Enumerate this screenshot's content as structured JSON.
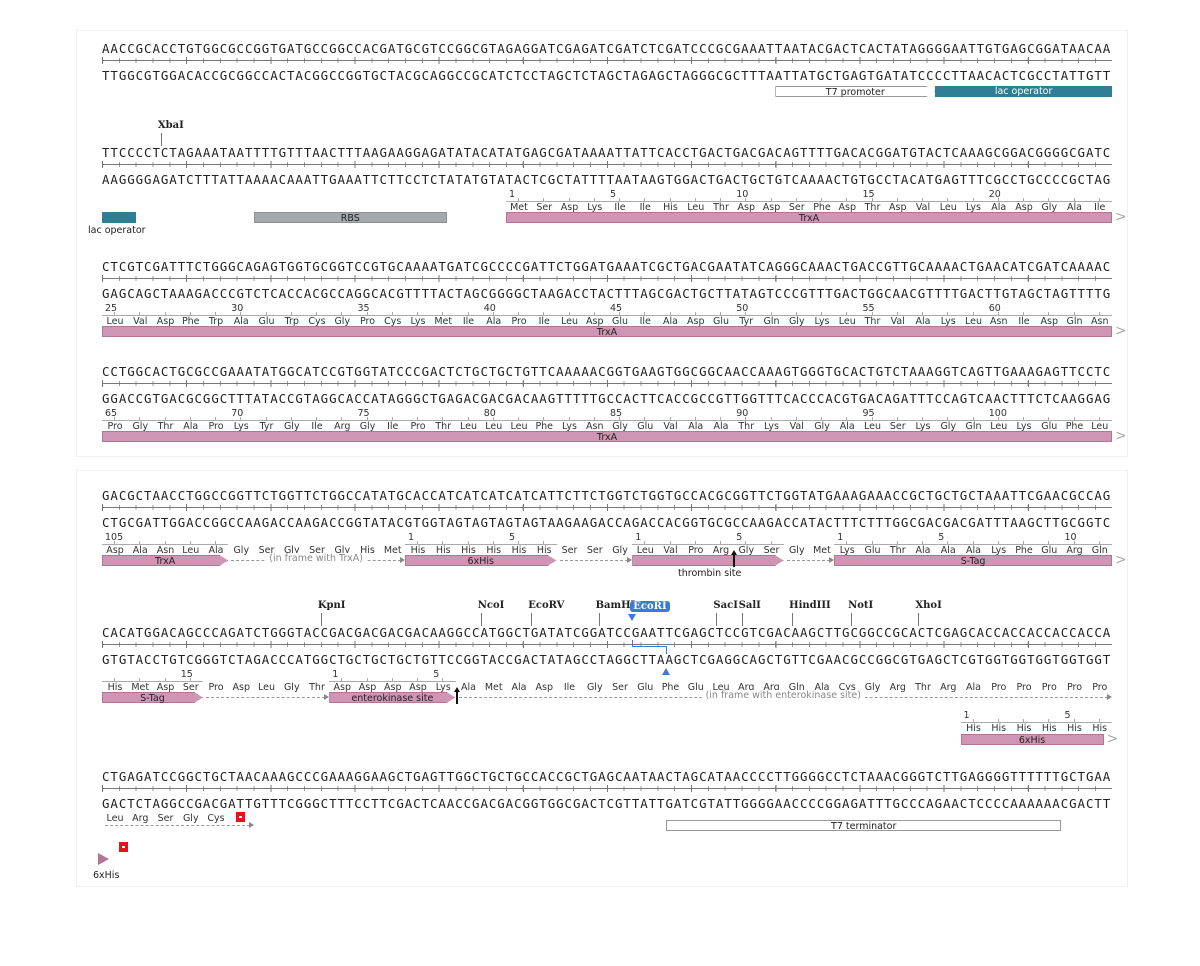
{
  "colors": {
    "cds": "#cf95b5",
    "lac_operator": "#2f7e94",
    "rbs": "#a4a9ae",
    "ecori": "#3a7bd5",
    "stop": "#e8101a"
  },
  "rows": [
    {
      "top": "AACCGCACCTGTGGCGCCGGTGATGCCGGCCACGATGCGTCCGGCGTAGAGGATCGAGATCGATCTCGATCCCGCGAAATTAATACGACTCACTATAGGGGAATTGTGAGCGGATAACAA",
      "bottom": "TTGGCGTGGACACCGCGGCCACTACGGCCGGTGCTACGCAGGCCGCATCTCCTAGCTCTAGCTAGAGCTAGGGCGCTTTAATTATGCTGAGTGATATCCCCTTAACACTCGCCTATTGTT",
      "enzymes": [],
      "aa": [],
      "features": [
        {
          "label": "T7 promoter",
          "start": 80,
          "end": 99,
          "style": "outline",
          "arrow": true
        },
        {
          "label": "lac operator",
          "start": 99,
          "end": 120,
          "style": "teal",
          "arrow": false
        }
      ],
      "dashes": []
    },
    {
      "top": "TTCCCCTCTAGAAATAATTTTGTTTAACTTTAAGAAGGAGATATACATATGAGCGATAAAATTATTCACCTGACTGACGACAGTTTTGACACGGATGTACTCAAAGCGGACGGGGCGATC",
      "bottom": "AAGGGGAGATCTTTATTAAAACAAATTGAAATTCTTCCTCTATATGTATACTCGCTATTTTAATAAGTGGACTGACTGCTGTCAAAACTGTGCCTACATGAGTTTCGCCTGCCCCGCTAG",
      "enzymes": [
        {
          "name": "XbaI",
          "pos": 7
        }
      ],
      "aa": [
        {
          "offset": 48,
          "residues": [
            "Met",
            "Ser",
            "Asp",
            "Lys",
            "Ile",
            "Ile",
            "His",
            "Leu",
            "Thr",
            "Asp",
            "Asp",
            "Ser",
            "Phe",
            "Asp",
            "Thr",
            "Asp",
            "Val",
            "Leu",
            "Lys",
            "Ala",
            "Asp",
            "Gly",
            "Ala",
            "Ile"
          ],
          "numbers": [
            {
              "n": "1",
              "i": 0
            },
            {
              "n": "5",
              "i": 4
            },
            {
              "n": "10",
              "i": 9
            },
            {
              "n": "15",
              "i": 14
            },
            {
              "n": "20",
              "i": 19
            }
          ]
        }
      ],
      "features": [
        {
          "label": "",
          "start": 0,
          "end": 4,
          "style": "teal",
          "arrow": false,
          "below": "lac operator"
        },
        {
          "label": "RBS",
          "start": 18,
          "end": 41,
          "style": "gray",
          "arrow": false
        },
        {
          "label": "TrxA",
          "start": 48,
          "end": 120,
          "style": "pink",
          "arrow": false,
          "cont": true
        }
      ],
      "dashes": []
    },
    {
      "top": "CTCGTCGATTTCTGGGCAGAGTGGTGCGGTCCGTGCAAAATGATCGCCCCGATTCTGGATGAAATCGCTGACGAATATCAGGGCAAACTGACCGTTGCAAAACTGAACATCGATCAAAAC",
      "bottom": "GAGCAGCTAAAGACCCGTCTCACCACGCCAGGCACGTTTTACTAGCGGGGCTAAGACCTACTTTAGCGACTGCTTATAGTCCCGTTTGACTGGCAACGTTTTGACTTGTAGCTAGTTTTG",
      "enzymes": [],
      "aa": [
        {
          "offset": 0,
          "residues": [
            "Leu",
            "Val",
            "Asp",
            "Phe",
            "Trp",
            "Ala",
            "Glu",
            "Trp",
            "Cys",
            "Gly",
            "Pro",
            "Cys",
            "Lys",
            "Met",
            "Ile",
            "Ala",
            "Pro",
            "Ile",
            "Leu",
            "Asp",
            "Glu",
            "Ile",
            "Ala",
            "Asp",
            "Glu",
            "Tyr",
            "Gln",
            "Gly",
            "Lys",
            "Leu",
            "Thr",
            "Val",
            "Ala",
            "Lys",
            "Leu",
            "Asn",
            "Ile",
            "Asp",
            "Gln",
            "Asn"
          ],
          "numbers": [
            {
              "n": "25",
              "i": 0
            },
            {
              "n": "30",
              "i": 5
            },
            {
              "n": "35",
              "i": 10
            },
            {
              "n": "40",
              "i": 15
            },
            {
              "n": "45",
              "i": 20
            },
            {
              "n": "50",
              "i": 25
            },
            {
              "n": "55",
              "i": 30
            },
            {
              "n": "60",
              "i": 35
            }
          ]
        }
      ],
      "features": [
        {
          "label": "TrxA",
          "start": 0,
          "end": 120,
          "style": "pink",
          "arrow": false,
          "cont": true
        }
      ],
      "dashes": []
    },
    {
      "top": "CCTGGCACTGCGCCGAAATATGGCATCCGTGGTATCCCGACTCTGCTGCTGTTCAAAAACGGTGAAGTGGCGGCAACCAAAGTGGGTGCACTGTCTAAAGGTCAGTTGAAAGAGTTCCTC",
      "bottom": "GGACCGTGACGCGGCTTTATACCGTAGGCACCATAGGGCTGAGACGACGACAAGTTTTTGCCACTTCACCGCCGTTGGTTTCACCCACGTGACAGATTTCCAGTCAACTTTCTCAAGGAG",
      "enzymes": [],
      "aa": [
        {
          "offset": 0,
          "residues": [
            "Pro",
            "Gly",
            "Thr",
            "Ala",
            "Pro",
            "Lys",
            "Tyr",
            "Gly",
            "Ile",
            "Arg",
            "Gly",
            "Ile",
            "Pro",
            "Thr",
            "Leu",
            "Leu",
            "Leu",
            "Phe",
            "Lys",
            "Asn",
            "Gly",
            "Glu",
            "Val",
            "Ala",
            "Ala",
            "Thr",
            "Lys",
            "Val",
            "Gly",
            "Ala",
            "Leu",
            "Ser",
            "Lys",
            "Gly",
            "Gln",
            "Leu",
            "Lys",
            "Glu",
            "Phe",
            "Leu"
          ],
          "numbers": [
            {
              "n": "65",
              "i": 0
            },
            {
              "n": "70",
              "i": 5
            },
            {
              "n": "75",
              "i": 10
            },
            {
              "n": "80",
              "i": 15
            },
            {
              "n": "85",
              "i": 20
            },
            {
              "n": "90",
              "i": 25
            },
            {
              "n": "95",
              "i": 30
            },
            {
              "n": "100",
              "i": 35
            }
          ]
        }
      ],
      "features": [
        {
          "label": "TrxA",
          "start": 0,
          "end": 120,
          "style": "pink",
          "arrow": false,
          "cont": true
        }
      ],
      "dashes": []
    },
    {
      "top": "GACGCTAACCTGGCCGGTTCTGGTTCTGGCCATATGCACCATCATCATCATCATTCTTCTGGTCTGGTGCCACGCGGTTCTGGTATGAAAGAAACCGCTGCTGCTAAATTCGAACGCCAG",
      "bottom": "CTGCGATTGGACCGGCCAAGACCAAGACCGGTATACGTGGTAGTAGTAGTAGTAAGAAGACCAGACCACGGTGCGCCAAGACCATACTTTCTTTGGCGACGACGATTTAAGCTTGCGGTC",
      "enzymes": [],
      "aa": [
        {
          "offset": 0,
          "residues": [
            "Asp",
            "Ala",
            "Asn",
            "Leu",
            "Ala"
          ],
          "numbers": [
            {
              "n": "105",
              "i": 0
            }
          ]
        },
        {
          "offset": 15,
          "residues": [
            "Gly",
            "Ser",
            "Gly",
            "Ser",
            "Gly",
            "His",
            "Met"
          ],
          "numbers": []
        },
        {
          "offset": 36,
          "residues": [
            "His",
            "His",
            "His",
            "His",
            "His",
            "His"
          ],
          "numbers": [
            {
              "n": "1",
              "i": 0
            },
            {
              "n": "5",
              "i": 4
            }
          ]
        },
        {
          "offset": 54,
          "residues": [
            "Ser",
            "Ser",
            "Gly"
          ],
          "numbers": []
        },
        {
          "offset": 63,
          "residues": [
            "Leu",
            "Val",
            "Pro",
            "Arg",
            "Gly",
            "Ser"
          ],
          "numbers": [
            {
              "n": "1",
              "i": 0
            },
            {
              "n": "5",
              "i": 4
            }
          ]
        },
        {
          "offset": 81,
          "residues": [
            "Gly",
            "Met"
          ],
          "numbers": []
        },
        {
          "offset": 87,
          "residues": [
            "Lys",
            "Glu",
            "Thr",
            "Ala",
            "Ala",
            "Ala",
            "Lys",
            "Phe",
            "Glu",
            "Arg",
            "Gln"
          ],
          "numbers": [
            {
              "n": "1",
              "i": 0
            },
            {
              "n": "5",
              "i": 4
            },
            {
              "n": "10",
              "i": 9
            }
          ]
        }
      ],
      "features": [
        {
          "label": "TrxA",
          "start": 0,
          "end": 15,
          "style": "pink",
          "arrow": true
        },
        {
          "label": "6xHis",
          "start": 36,
          "end": 54,
          "style": "pink",
          "arrow": true
        },
        {
          "label": "",
          "start": 63,
          "end": 81,
          "style": "pink",
          "arrow": true,
          "below": "thrombin site",
          "marker": 75
        },
        {
          "label": "S-Tag",
          "start": 87,
          "end": 120,
          "style": "pink",
          "arrow": false,
          "cont": true
        }
      ],
      "dashes": [
        {
          "start": 15,
          "end": 36,
          "label": "(in frame with TrxA)"
        },
        {
          "start": 54,
          "end": 63,
          "label": ""
        },
        {
          "start": 81,
          "end": 87,
          "label": ""
        }
      ]
    },
    {
      "top": "CACATGGACAGCCCAGATCTGGGTACCGACGACGACGACAAGGCCATGGCTGATATCGGATCCGAATTCGAGCTCCGTCGACAAGCTTGCGGCCGCACTCGAGCACCACCACCACCACCA",
      "bottom": "GTGTACCTGTCGGGTCTAGACCCATGGCTGCTGCTGCTGTTCCGGTACCGACTATAGCCTAGGCTTAAGCTCGAGGCAGCTGTTCGAACGCCGGCGTGAGCTCGTGGTGGTGGTGGTGGT",
      "enzymes": [
        {
          "name": "KpnI",
          "pos": 26
        },
        {
          "name": "NcoI",
          "pos": 45
        },
        {
          "name": "EcoRV",
          "pos": 51
        },
        {
          "name": "BamHI",
          "pos": 59
        },
        {
          "name": "EcoRI",
          "pos": 63,
          "highlight": true,
          "cut_bottom": 67
        },
        {
          "name": "SacI",
          "pos": 73
        },
        {
          "name": "SalI",
          "pos": 76
        },
        {
          "name": "HindIII",
          "pos": 82
        },
        {
          "name": "NotI",
          "pos": 89
        },
        {
          "name": "XhoI",
          "pos": 97
        }
      ],
      "aa": [
        {
          "offset": 0,
          "residues": [
            "His",
            "Met",
            "Asp",
            "Ser"
          ],
          "numbers": [
            {
              "n": "15",
              "i": 3
            }
          ]
        },
        {
          "offset": 12,
          "residues": [
            "Pro",
            "Asp",
            "Leu",
            "Gly",
            "Thr"
          ],
          "numbers": []
        },
        {
          "offset": 27,
          "residues": [
            "Asp",
            "Asp",
            "Asp",
            "Asp",
            "Lys"
          ],
          "numbers": [
            {
              "n": "1",
              "i": 0
            },
            {
              "n": "5",
              "i": 4
            }
          ]
        },
        {
          "offset": 42,
          "residues": [
            "Ala",
            "Met",
            "Ala",
            "Asp",
            "Ile",
            "Gly",
            "Ser",
            "Glu",
            "Phe",
            "Glu",
            "Leu",
            "Arg",
            "Arg",
            "Gln",
            "Ala",
            "Cys",
            "Gly",
            "Arg",
            "Thr",
            "Arg",
            "Ala",
            "Pro",
            "Pro",
            "Pro",
            "Pro",
            "Pro"
          ],
          "numbers": []
        },
        {
          "offset": 102,
          "line": 2,
          "residues": [
            "His",
            "His",
            "His",
            "His",
            "His",
            "His"
          ],
          "numbers": [
            {
              "n": "1",
              "i": 0
            },
            {
              "n": "5",
              "i": 4
            }
          ]
        }
      ],
      "features": [
        {
          "label": "S-Tag",
          "start": 0,
          "end": 12,
          "style": "pink",
          "arrow": true
        },
        {
          "label": "enterokinase site",
          "start": 27,
          "end": 42,
          "style": "pink",
          "arrow": true,
          "marker": 42
        },
        {
          "label": "6xHis",
          "start": 102,
          "end": 119,
          "style": "pink",
          "arrow": false,
          "cont": true,
          "line": 2
        }
      ],
      "dashes": [
        {
          "start": 12,
          "end": 27,
          "label": ""
        },
        {
          "start": 42,
          "end": 120,
          "label": "(in frame with enterokinase site)"
        }
      ]
    },
    {
      "top": "CTGAGATCCGGCTGCTAACAAAGCCCGAAAGGAAGCTGAGTTGGCTGCTGCCACCGCTGAGCAATAACTAGCATAACCCCTTGGGGCCTCTAAACGGGTCTTGAGGGGTTTTTTGCTGAA",
      "bottom": "GACTCTAGGCCGACGATTGTTTCGGGCTTTCCTTCGACTCAACCGACGACGGTGGCGACTCGTTATTGATCGTATTGGGGAACCCCGGAGATTTGCCCAGAACTCCCCAAAAAACGACTT",
      "enzymes": [],
      "aa": [
        {
          "offset": 0,
          "residues": [
            "Leu",
            "Arg",
            "Ser",
            "Gly",
            "Cys"
          ],
          "numbers": [],
          "stop": true
        }
      ],
      "features": [
        {
          "label": "T7 terminator",
          "start": 67,
          "end": 114,
          "style": "outline",
          "arrow": false,
          "line": 3
        }
      ],
      "dashes": [
        {
          "start": 0,
          "end": 18,
          "label": "",
          "line": 3
        }
      ],
      "tail": {
        "label": "6xHis"
      }
    }
  ]
}
